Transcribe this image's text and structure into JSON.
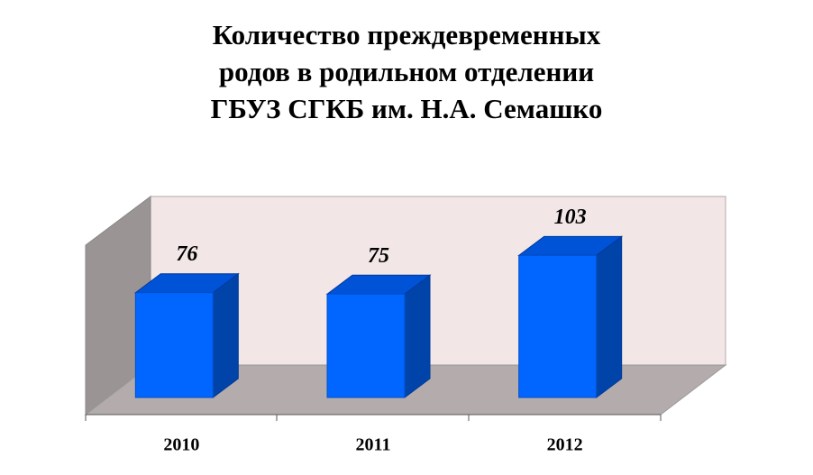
{
  "chart_data": {
    "type": "bar3d",
    "title": [
      "Количество преждевременных",
      "родов в родильном отделении",
      "ГБУЗ СГКБ им. Н.А. Семашко"
    ],
    "categories": [
      "2010",
      "2011",
      "2012"
    ],
    "values": [
      76,
      75,
      103
    ],
    "color": "#0066ff"
  }
}
